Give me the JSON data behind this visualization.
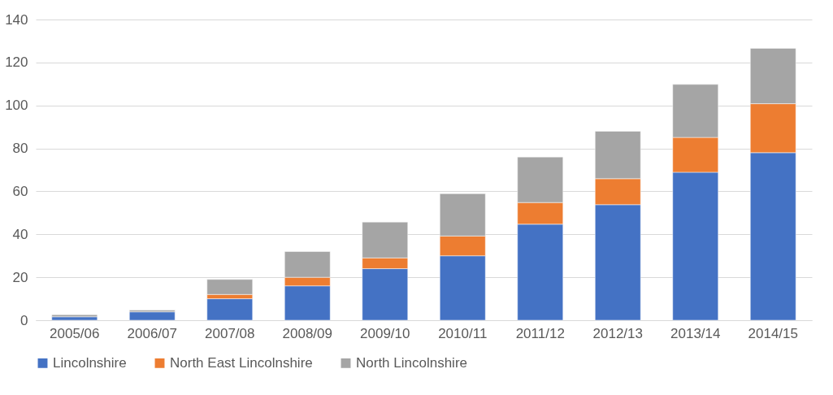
{
  "chart_data": {
    "type": "bar",
    "stacked": true,
    "categories": [
      "2005/06",
      "2006/07",
      "2007/08",
      "2008/09",
      "2009/10",
      "2010/11",
      "2011/12",
      "2012/13",
      "2013/14",
      "2014/15"
    ],
    "series": [
      {
        "name": "Lincolnshire",
        "color": "#4472c4",
        "values": [
          1.6,
          3.9,
          10,
          16,
          24,
          30,
          44.7,
          53.8,
          68.9,
          78
        ]
      },
      {
        "name": "North East Lincolnshire",
        "color": "#ed7d31",
        "values": [
          null,
          null,
          2,
          4,
          5,
          9.2,
          10.1,
          12.1,
          16.2,
          22.8
        ]
      },
      {
        "name": "North Lincolnshire",
        "color": "#a5a5a5",
        "values": [
          1.0,
          0.8,
          7,
          12,
          16.7,
          19.7,
          21.2,
          22.1,
          24.7,
          25.8
        ]
      }
    ],
    "ylim": [
      0,
      140
    ],
    "yticks": [
      0,
      20,
      40,
      60,
      80,
      100,
      120,
      140
    ],
    "grid": "y",
    "legend": "bottom"
  }
}
